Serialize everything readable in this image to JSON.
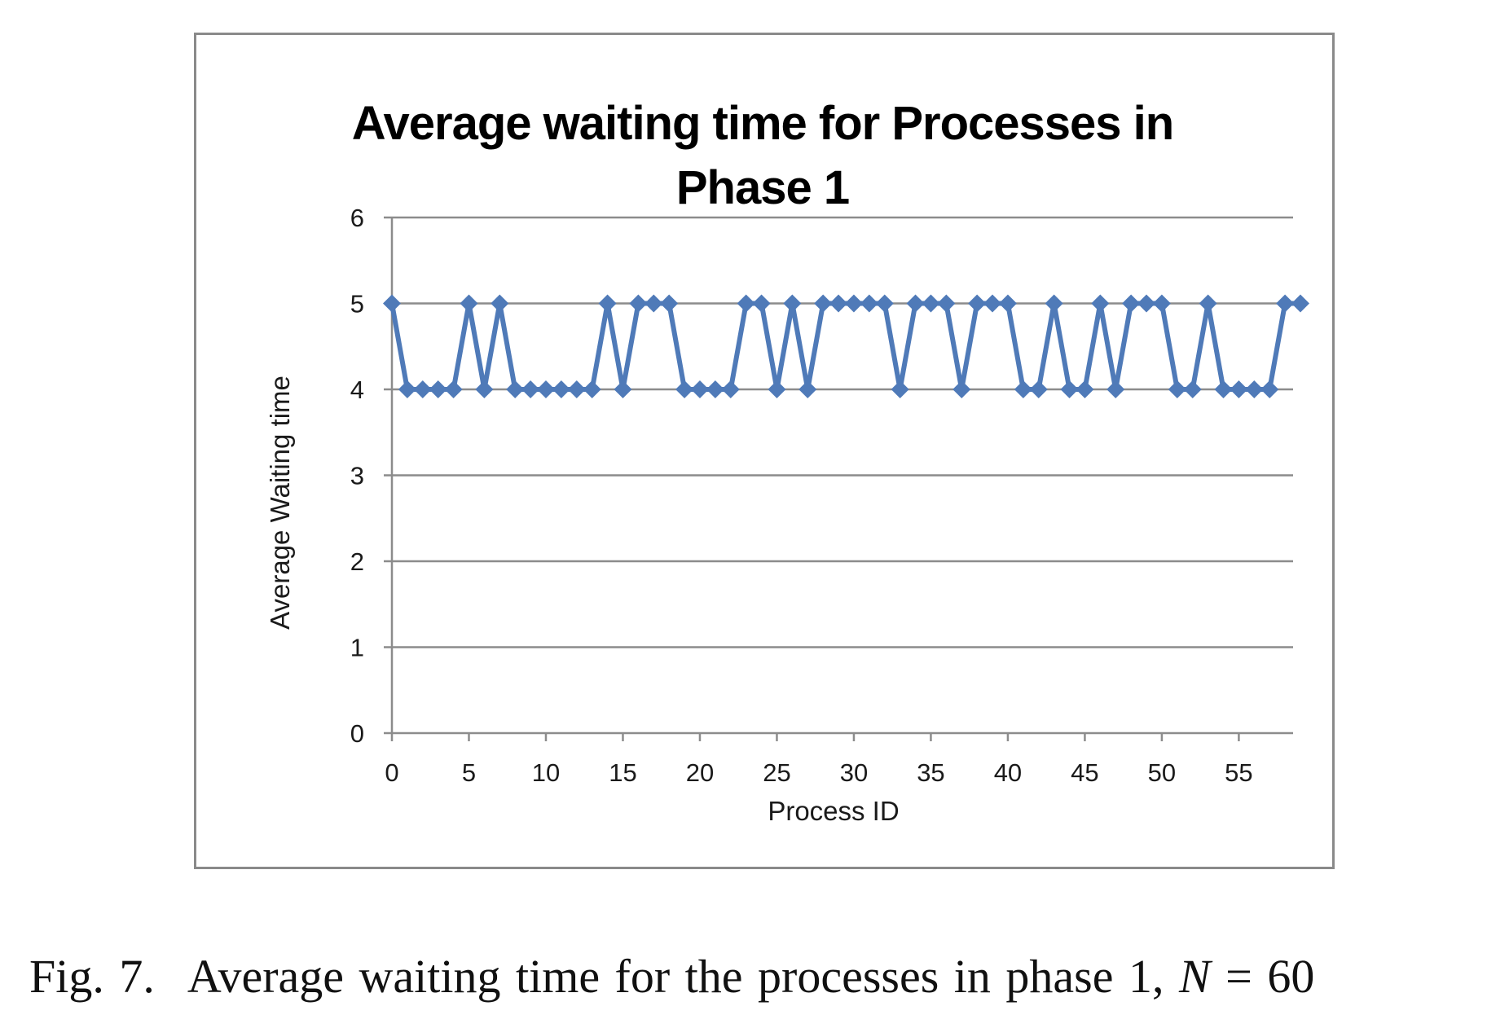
{
  "caption": {
    "label": "Fig. 7.",
    "text": "Average waiting time for the processes in phase 1, ",
    "math_var": "N",
    "math_rest": " = 60"
  },
  "chart_data": {
    "type": "line",
    "title_line1": "Average waiting time for Processes  in",
    "title_line2": "Phase 1",
    "xlabel": "Process ID",
    "ylabel": "Average Waiting time",
    "xlim": [
      0,
      59
    ],
    "ylim": [
      0,
      6
    ],
    "yticks": [
      0,
      1,
      2,
      3,
      4,
      5,
      6
    ],
    "xticks": [
      0,
      5,
      10,
      15,
      20,
      25,
      30,
      35,
      40,
      45,
      50,
      55
    ],
    "grid": true,
    "legend": "none",
    "series_color": "#4f7ab8",
    "x": [
      0,
      1,
      2,
      3,
      4,
      5,
      6,
      7,
      8,
      9,
      10,
      11,
      12,
      13,
      14,
      15,
      16,
      17,
      18,
      19,
      20,
      21,
      22,
      23,
      24,
      25,
      26,
      27,
      28,
      29,
      30,
      31,
      32,
      33,
      34,
      35,
      36,
      37,
      38,
      39,
      40,
      41,
      42,
      43,
      44,
      45,
      46,
      47,
      48,
      49,
      50,
      51,
      52,
      53,
      54,
      55,
      56,
      57,
      58,
      59
    ],
    "values": [
      5,
      4,
      4,
      4,
      4,
      5,
      4,
      5,
      4,
      4,
      4,
      4,
      4,
      4,
      5,
      4,
      5,
      5,
      5,
      4,
      4,
      4,
      4,
      5,
      5,
      4,
      5,
      4,
      5,
      5,
      5,
      5,
      5,
      4,
      5,
      5,
      5,
      4,
      5,
      5,
      5,
      4,
      4,
      5,
      4,
      4,
      5,
      4,
      5,
      5,
      5,
      4,
      4,
      5,
      4,
      4,
      4,
      4,
      5,
      5
    ]
  }
}
